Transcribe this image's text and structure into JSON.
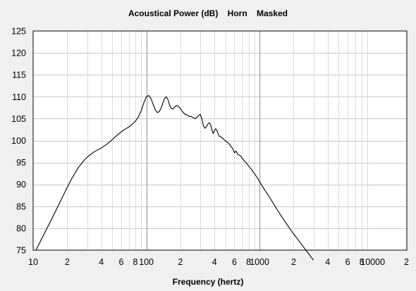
{
  "chart_data": {
    "type": "line",
    "title": "Acoustical Power (dB)    Horn    Masked",
    "xlabel": "Frequency (hertz)",
    "ylabel": "",
    "x_scale": "log",
    "xlim": [
      10,
      20000
    ],
    "ylim": [
      75,
      125
    ],
    "grid": true,
    "y_ticks": [
      75,
      80,
      85,
      90,
      95,
      100,
      105,
      110,
      115,
      120,
      125
    ],
    "x_ticks": [
      {
        "value": 10,
        "label": "10"
      },
      {
        "value": 20,
        "label": "2"
      },
      {
        "value": 40,
        "label": "4"
      },
      {
        "value": 60,
        "label": "6"
      },
      {
        "value": 80,
        "label": "8"
      },
      {
        "value": 100,
        "label": "100"
      },
      {
        "value": 200,
        "label": "2"
      },
      {
        "value": 400,
        "label": "4"
      },
      {
        "value": 600,
        "label": "6"
      },
      {
        "value": 800,
        "label": "8"
      },
      {
        "value": 1000,
        "label": "1000"
      },
      {
        "value": 2000,
        "label": "2"
      },
      {
        "value": 4000,
        "label": "4"
      },
      {
        "value": 6000,
        "label": "6"
      },
      {
        "value": 8000,
        "label": "8"
      },
      {
        "value": 10000,
        "label": "10000"
      },
      {
        "value": 20000,
        "label": "2"
      }
    ],
    "series": [
      {
        "color": "#000000",
        "x": [
          10.6,
          12,
          14,
          16,
          18,
          20,
          22,
          25,
          28,
          30,
          32,
          35,
          38,
          40,
          45,
          50,
          55,
          60,
          65,
          70,
          75,
          80,
          85,
          90,
          95,
          100,
          105,
          110,
          115,
          120,
          125,
          130,
          135,
          140,
          145,
          150,
          155,
          160,
          165,
          170,
          175,
          180,
          185,
          190,
          195,
          200,
          210,
          220,
          230,
          240,
          250,
          260,
          270,
          280,
          290,
          300,
          310,
          320,
          330,
          340,
          350,
          360,
          370,
          380,
          390,
          400,
          410,
          420,
          430,
          440,
          450,
          470,
          500,
          520,
          540,
          560,
          580,
          600,
          620,
          640,
          660,
          680,
          700,
          720,
          750,
          780,
          800,
          850,
          900,
          950,
          1000,
          1100,
          1200,
          1300,
          1400,
          1500,
          1600,
          1700,
          1800,
          1900,
          2000,
          2200,
          2400,
          2600,
          2800,
          3000
        ],
        "y": [
          75,
          77.8,
          81.2,
          84.2,
          86.9,
          89.3,
          91.4,
          93.8,
          95.4,
          96.2,
          96.8,
          97.5,
          98,
          98.3,
          99.2,
          100.2,
          101.2,
          102,
          102.6,
          103.1,
          103.7,
          104.4,
          105.4,
          106.8,
          108.6,
          110,
          110.3,
          109.6,
          108.2,
          107,
          106.4,
          106.6,
          107.4,
          108.6,
          109.6,
          110,
          109.4,
          108.2,
          107.4,
          107.2,
          107.4,
          107.8,
          108,
          107.9,
          107.6,
          107.3,
          106.5,
          106,
          105.8,
          105.5,
          105.5,
          105.2,
          105,
          105.3,
          105.8,
          106,
          104.8,
          103.3,
          102.8,
          103.2,
          103.8,
          104.1,
          103.6,
          102.4,
          101.6,
          102.3,
          102.7,
          102.3,
          101.6,
          101,
          100.9,
          100.6,
          99.9,
          99.6,
          99.2,
          98.6,
          98.2,
          97.2,
          97.6,
          96.9,
          96.7,
          96.5,
          96,
          95.6,
          95.1,
          94.6,
          94.2,
          93.4,
          92.5,
          91.6,
          90.6,
          88.9,
          87.4,
          86,
          84.6,
          83.4,
          82.3,
          81.3,
          80.4,
          79.5,
          78.7,
          77.3,
          76,
          74.8,
          73.7,
          72.7
        ]
      }
    ]
  }
}
